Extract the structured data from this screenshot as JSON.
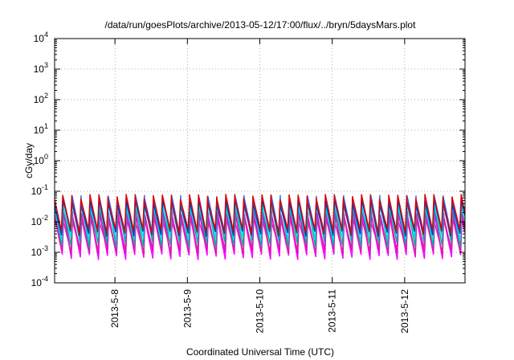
{
  "chart_data": {
    "type": "line",
    "title": "/data/run/goesPlots/archive/2013-05-12/17:00/flux/../bryn/5daysMars.plot",
    "xlabel": "Coordinated Universal Time (UTC)",
    "ylabel": "cGy/day",
    "y_scale": "log",
    "ylim": [
      0.0001,
      10000
    ],
    "xlim": [
      "2013-05-07T04:00",
      "2013-05-12T20:00"
    ],
    "y_ticks": [
      {
        "base": "10",
        "exp": "-4",
        "value": 0.0001
      },
      {
        "base": "10",
        "exp": "-3",
        "value": 0.001
      },
      {
        "base": "10",
        "exp": "-2",
        "value": 0.01
      },
      {
        "base": "10",
        "exp": "-1",
        "value": 0.1
      },
      {
        "base": "10",
        "exp": "0",
        "value": 1
      },
      {
        "base": "10",
        "exp": "1",
        "value": 10
      },
      {
        "base": "10",
        "exp": "2",
        "value": 100
      },
      {
        "base": "10",
        "exp": "3",
        "value": 1000
      },
      {
        "base": "10",
        "exp": "4",
        "value": 10000
      }
    ],
    "x_ticks": [
      {
        "label": "2013-5-8",
        "value": "2013-05-08T00:00"
      },
      {
        "label": "2013-5-9",
        "value": "2013-05-09T00:00"
      },
      {
        "label": "2013-5-10",
        "value": "2013-05-10T00:00"
      },
      {
        "label": "2013-5-11",
        "value": "2013-05-11T00:00"
      },
      {
        "label": "2013-5-12",
        "value": "2013-05-12T00:00"
      }
    ],
    "grid": true,
    "legend": "none",
    "sawtooth_period_hours": 3,
    "series": [
      {
        "color": "#ff00ff",
        "peak": 0.015,
        "trough": 0.0007
      },
      {
        "color": "#d010d0",
        "peak": 0.02,
        "trough": 0.001
      },
      {
        "color": "#e020a0",
        "peak": 0.012,
        "trough": 0.0012
      },
      {
        "color": "#00b0a0",
        "peak": 0.04,
        "trough": 0.0018
      },
      {
        "color": "#00e0e0",
        "peak": 0.035,
        "trough": 0.003
      },
      {
        "color": "#2060ff",
        "peak": 0.06,
        "trough": 0.0045
      },
      {
        "color": "#0040c0",
        "peak": 0.045,
        "trough": 0.004
      },
      {
        "color": "#e00000",
        "peak": 0.065,
        "trough": 0.005
      }
    ]
  }
}
